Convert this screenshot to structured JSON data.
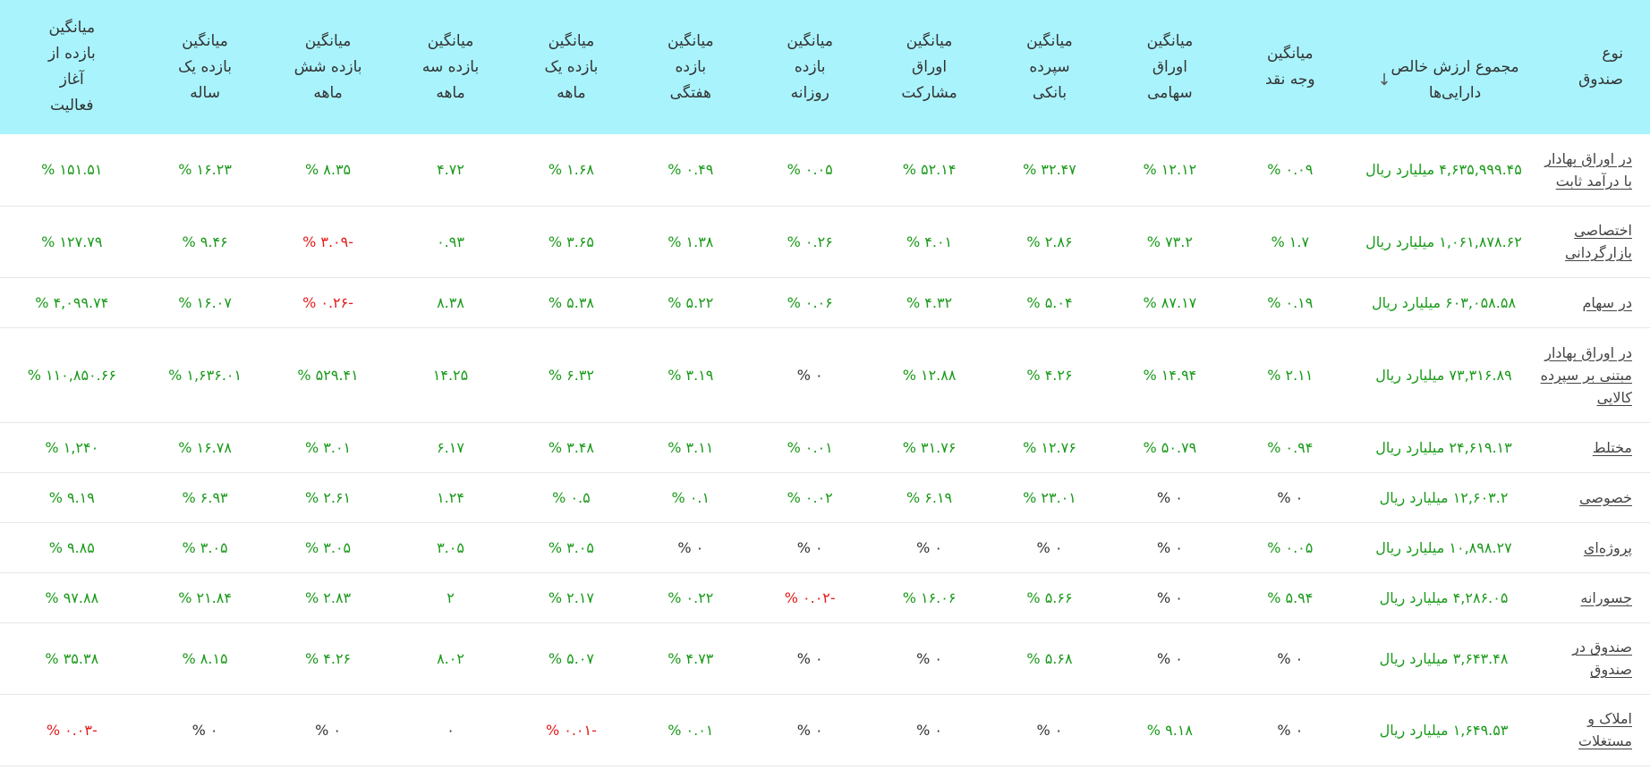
{
  "header": {
    "type": "نوع\nصندوق",
    "nav": "مجموع ارزش خالص\nدارایی‌ها",
    "cash": "میانگین\nوجه نقد",
    "stocks": "میانگین\nاوراق\nسهامی",
    "deposit": "میانگین\nسپرده\nبانکی",
    "bonds": "میانگین\nاوراق\nمشارکت",
    "daily": "میانگین\nبازده\nروزانه",
    "weekly": "میانگین\nبازده\nهفتگی",
    "monthly": "میانگین\nبازده یک\nماهه",
    "quarterly": "میانگین\nبازده سه\nماهه",
    "semiannual": "میانگین\nبازده شش\nماهه",
    "annual": "میانگین\nبازده یک\nساله",
    "since_start": "میانگین\nبازده از\nآغاز\nفعالیت",
    "sort_icon": "arrow-down-icon",
    "sort_glyph": "↓"
  },
  "colors": {
    "header_bg": "#a9f3fc",
    "positive": "#1a9a1a",
    "negative": "#e31b1b",
    "neutral": "#333333"
  },
  "rows": [
    {
      "type": "در اوراق بهادار با درآمد ثابت",
      "nav": "۴,۶۳۵,۹۹۹.۴۵ میلیارد ریال",
      "cash": {
        "v": "۰.۰۹ %",
        "s": "pos"
      },
      "stocks": {
        "v": "۱۲.۱۲ %",
        "s": "pos"
      },
      "deposit": {
        "v": "۳۲.۴۷ %",
        "s": "pos"
      },
      "bonds": {
        "v": "۵۲.۱۴ %",
        "s": "pos"
      },
      "daily": {
        "v": "۰.۰۵ %",
        "s": "pos"
      },
      "weekly": {
        "v": "۰.۴۹ %",
        "s": "pos"
      },
      "monthly": {
        "v": "۱.۶۸ %",
        "s": "pos"
      },
      "quarterly": {
        "v": "۴.۷۲",
        "s": "pos"
      },
      "semiannual": {
        "v": "۸.۳۵ %",
        "s": "pos"
      },
      "annual": {
        "v": "۱۶.۲۳ %",
        "s": "pos"
      },
      "since_start": {
        "v": "۱۵۱.۵۱ %",
        "s": "pos"
      }
    },
    {
      "type": "اختصاصی بازارگردانی",
      "nav": "۱,۰۶۱,۸۷۸.۶۲ میلیارد ریال",
      "cash": {
        "v": "۱.۷ %",
        "s": "pos"
      },
      "stocks": {
        "v": "۷۳.۲ %",
        "s": "pos"
      },
      "deposit": {
        "v": "۲.۸۶ %",
        "s": "pos"
      },
      "bonds": {
        "v": "۴.۰۱ %",
        "s": "pos"
      },
      "daily": {
        "v": "۰.۲۶ %",
        "s": "pos"
      },
      "weekly": {
        "v": "۱.۳۸ %",
        "s": "pos"
      },
      "monthly": {
        "v": "۳.۶۵ %",
        "s": "pos"
      },
      "quarterly": {
        "v": "۰.۹۳",
        "s": "pos"
      },
      "semiannual": {
        "v": "-۳.۰۹ %",
        "s": "neg"
      },
      "annual": {
        "v": "۹.۴۶ %",
        "s": "pos"
      },
      "since_start": {
        "v": "۱۲۷.۷۹ %",
        "s": "pos"
      }
    },
    {
      "type": "در سهام",
      "nav": "۶۰۳,۰۵۸.۵۸ میلیارد ریال",
      "cash": {
        "v": "۰.۱۹ %",
        "s": "pos"
      },
      "stocks": {
        "v": "۸۷.۱۷ %",
        "s": "pos"
      },
      "deposit": {
        "v": "۵.۰۴ %",
        "s": "pos"
      },
      "bonds": {
        "v": "۴.۳۲ %",
        "s": "pos"
      },
      "daily": {
        "v": "۰.۰۶ %",
        "s": "pos"
      },
      "weekly": {
        "v": "۵.۲۲ %",
        "s": "pos"
      },
      "monthly": {
        "v": "۵.۳۸ %",
        "s": "pos"
      },
      "quarterly": {
        "v": "۸.۳۸",
        "s": "pos"
      },
      "semiannual": {
        "v": "-۰.۲۶ %",
        "s": "neg"
      },
      "annual": {
        "v": "۱۶.۰۷ %",
        "s": "pos"
      },
      "since_start": {
        "v": "۴,۰۹۹.۷۴ %",
        "s": "pos"
      }
    },
    {
      "type": "در اوراق بهادار مبتنی بر سپرده کالایی",
      "nav": "۷۳,۳۱۶.۸۹ میلیارد ریال",
      "cash": {
        "v": "۲.۱۱ %",
        "s": "pos"
      },
      "stocks": {
        "v": "۱۴.۹۴ %",
        "s": "pos"
      },
      "deposit": {
        "v": "۴.۲۶ %",
        "s": "pos"
      },
      "bonds": {
        "v": "۱۲.۸۸ %",
        "s": "pos"
      },
      "daily": {
        "v": "۰ %",
        "s": "neu"
      },
      "weekly": {
        "v": "۳.۱۹ %",
        "s": "pos"
      },
      "monthly": {
        "v": "۶.۳۲ %",
        "s": "pos"
      },
      "quarterly": {
        "v": "۱۴.۲۵",
        "s": "pos"
      },
      "semiannual": {
        "v": "۵۲۹.۴۱ %",
        "s": "pos"
      },
      "annual": {
        "v": "۱,۶۳۶.۰۱ %",
        "s": "pos"
      },
      "since_start": {
        "v": "۱۱۰,۸۵۰.۶۶ %",
        "s": "pos"
      }
    },
    {
      "type": "مختلط",
      "nav": "۲۴,۶۱۹.۱۳ میلیارد ریال",
      "cash": {
        "v": "۰.۹۴ %",
        "s": "pos"
      },
      "stocks": {
        "v": "۵۰.۷۹ %",
        "s": "pos"
      },
      "deposit": {
        "v": "۱۲.۷۶ %",
        "s": "pos"
      },
      "bonds": {
        "v": "۳۱.۷۶ %",
        "s": "pos"
      },
      "daily": {
        "v": "۰.۰۱ %",
        "s": "pos"
      },
      "weekly": {
        "v": "۳.۱۱ %",
        "s": "pos"
      },
      "monthly": {
        "v": "۳.۴۸ %",
        "s": "pos"
      },
      "quarterly": {
        "v": "۶.۱۷",
        "s": "pos"
      },
      "semiannual": {
        "v": "۳.۰۱ %",
        "s": "pos"
      },
      "annual": {
        "v": "۱۶.۷۸ %",
        "s": "pos"
      },
      "since_start": {
        "v": "۱,۲۴۰ %",
        "s": "pos"
      }
    },
    {
      "type": "خصوصی",
      "nav": "۱۲,۶۰۳.۲ میلیارد ریال",
      "cash": {
        "v": "۰ %",
        "s": "neu"
      },
      "stocks": {
        "v": "۰ %",
        "s": "neu"
      },
      "deposit": {
        "v": "۲۳.۰۱ %",
        "s": "pos"
      },
      "bonds": {
        "v": "۶.۱۹ %",
        "s": "pos"
      },
      "daily": {
        "v": "۰.۰۲ %",
        "s": "pos"
      },
      "weekly": {
        "v": "۰.۱ %",
        "s": "pos"
      },
      "monthly": {
        "v": "۰.۵ %",
        "s": "pos"
      },
      "quarterly": {
        "v": "۱.۲۴",
        "s": "pos"
      },
      "semiannual": {
        "v": "۲.۶۱ %",
        "s": "pos"
      },
      "annual": {
        "v": "۶.۹۳ %",
        "s": "pos"
      },
      "since_start": {
        "v": "۹.۱۹ %",
        "s": "pos"
      }
    },
    {
      "type": "پروژه‌ای",
      "nav": "۱۰,۸۹۸.۲۷ میلیارد ریال",
      "cash": {
        "v": "۰.۰۵ %",
        "s": "pos"
      },
      "stocks": {
        "v": "۰ %",
        "s": "neu"
      },
      "deposit": {
        "v": "۰ %",
        "s": "neu"
      },
      "bonds": {
        "v": "۰ %",
        "s": "neu"
      },
      "daily": {
        "v": "۰ %",
        "s": "neu"
      },
      "weekly": {
        "v": "۰ %",
        "s": "neu"
      },
      "monthly": {
        "v": "۳.۰۵ %",
        "s": "pos"
      },
      "quarterly": {
        "v": "۳.۰۵",
        "s": "pos"
      },
      "semiannual": {
        "v": "۳.۰۵ %",
        "s": "pos"
      },
      "annual": {
        "v": "۳.۰۵ %",
        "s": "pos"
      },
      "since_start": {
        "v": "۹.۸۵ %",
        "s": "pos"
      }
    },
    {
      "type": "جسورانه",
      "nav": "۴,۲۸۶.۰۵ میلیارد ریال",
      "cash": {
        "v": "۵.۹۴ %",
        "s": "pos"
      },
      "stocks": {
        "v": "۰ %",
        "s": "neu"
      },
      "deposit": {
        "v": "۵.۶۶ %",
        "s": "pos"
      },
      "bonds": {
        "v": "۱۶.۰۶ %",
        "s": "pos"
      },
      "daily": {
        "v": "-۰.۰۲ %",
        "s": "neg"
      },
      "weekly": {
        "v": "۰.۲۲ %",
        "s": "pos"
      },
      "monthly": {
        "v": "۲.۱۷ %",
        "s": "pos"
      },
      "quarterly": {
        "v": "۲",
        "s": "pos"
      },
      "semiannual": {
        "v": "۲.۸۳ %",
        "s": "pos"
      },
      "annual": {
        "v": "۲۱.۸۴ %",
        "s": "pos"
      },
      "since_start": {
        "v": "۹۷.۸۸ %",
        "s": "pos"
      }
    },
    {
      "type": "صندوق در صندوق",
      "nav": "۳,۶۴۳.۴۸ میلیارد ریال",
      "cash": {
        "v": "۰ %",
        "s": "neu"
      },
      "stocks": {
        "v": "۰ %",
        "s": "neu"
      },
      "deposit": {
        "v": "۵.۶۸ %",
        "s": "pos"
      },
      "bonds": {
        "v": "۰ %",
        "s": "neu"
      },
      "daily": {
        "v": "۰ %",
        "s": "neu"
      },
      "weekly": {
        "v": "۴.۷۳ %",
        "s": "pos"
      },
      "monthly": {
        "v": "۵.۰۷ %",
        "s": "pos"
      },
      "quarterly": {
        "v": "۸.۰۲",
        "s": "pos"
      },
      "semiannual": {
        "v": "۴.۲۶ %",
        "s": "pos"
      },
      "annual": {
        "v": "۸.۱۵ %",
        "s": "pos"
      },
      "since_start": {
        "v": "۳۵.۳۸ %",
        "s": "pos"
      }
    },
    {
      "type": "املاک و مستغلات",
      "nav": "۱,۶۴۹.۵۳ میلیارد ریال",
      "cash": {
        "v": "۰ %",
        "s": "neu"
      },
      "stocks": {
        "v": "۹.۱۸ %",
        "s": "pos"
      },
      "deposit": {
        "v": "۰ %",
        "s": "neu"
      },
      "bonds": {
        "v": "۰ %",
        "s": "neu"
      },
      "daily": {
        "v": "۰ %",
        "s": "neu"
      },
      "weekly": {
        "v": "۰.۰۱ %",
        "s": "pos"
      },
      "monthly": {
        "v": "-۰.۰۱ %",
        "s": "neg"
      },
      "quarterly": {
        "v": "۰",
        "s": "neu"
      },
      "semiannual": {
        "v": "۰ %",
        "s": "neu"
      },
      "annual": {
        "v": "۰ %",
        "s": "neu"
      },
      "since_start": {
        "v": "-۰.۰۳ %",
        "s": "neg"
      }
    }
  ]
}
